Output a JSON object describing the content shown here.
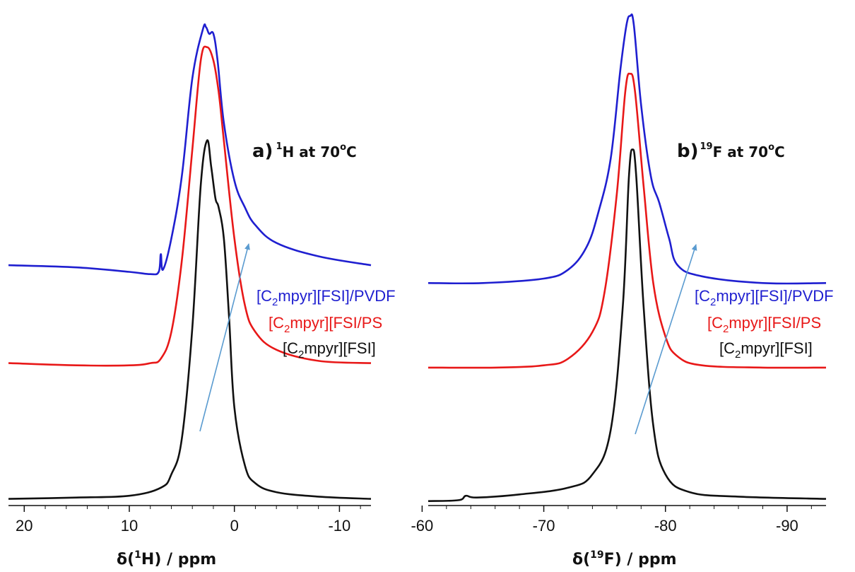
{
  "colors": {
    "blue": "#1f1fd0",
    "red": "#e81818",
    "black": "#111111",
    "arrow": "#5a9bd0"
  },
  "chart_data": [
    {
      "type": "line",
      "panel_label": "a)",
      "title_iso": "1",
      "title_nuc": "H",
      "title_rest": " at 70",
      "title_deg": "o",
      "title_unit": "C",
      "xlabel_pre": "δ(",
      "xlabel_iso": "1",
      "xlabel_nuc": "H",
      "xlabel_post": ") / ppm",
      "xlim": [
        21.5,
        -13
      ],
      "ylim": [
        0,
        1.12
      ],
      "x_ticks": [
        20,
        10,
        0,
        -10
      ],
      "tick_labels": [
        "20",
        "10",
        "0",
        "-10"
      ],
      "grid": false,
      "series": [
        {
          "name": "[C2mpyr][FSI]/PVDF",
          "color": "#1f1fd0",
          "x": [
            21.5,
            15,
            10,
            8,
            7.2,
            7.0,
            6.8,
            6,
            5,
            4,
            3,
            2.7,
            2.4,
            2,
            1.6,
            1,
            0,
            -1,
            -2,
            -4,
            -8,
            -13
          ],
          "y": [
            0.54,
            0.535,
            0.525,
            0.52,
            0.525,
            0.565,
            0.53,
            0.6,
            0.74,
            0.96,
            1.07,
            1.075,
            1.06,
            1.06,
            1.0,
            0.86,
            0.73,
            0.67,
            0.63,
            0.59,
            0.56,
            0.54
          ]
        },
        {
          "name": "[C2mpyr][FSI/PS",
          "color": "#e81818",
          "x": [
            21.5,
            15,
            10,
            8,
            7,
            6,
            5,
            4,
            3.2,
            2.6,
            2.0,
            1.5,
            1.0,
            0,
            -1,
            -2,
            -4,
            -8,
            -13
          ],
          "y": [
            0.32,
            0.315,
            0.315,
            0.32,
            0.33,
            0.39,
            0.55,
            0.8,
            1.0,
            1.03,
            1.0,
            0.93,
            0.82,
            0.6,
            0.45,
            0.39,
            0.35,
            0.325,
            0.32
          ]
        },
        {
          "name": "[C2mpyr][FSI]",
          "color": "#111111",
          "x": [
            21.5,
            15,
            10,
            7,
            6,
            5,
            4,
            3.2,
            2.6,
            2.2,
            1.8,
            1.5,
            1.0,
            0.5,
            0,
            -1,
            -2,
            -4,
            -8,
            -13
          ],
          "y": [
            0.015,
            0.018,
            0.022,
            0.04,
            0.07,
            0.15,
            0.4,
            0.72,
            0.82,
            0.76,
            0.69,
            0.67,
            0.6,
            0.42,
            0.22,
            0.09,
            0.05,
            0.03,
            0.02,
            0.015
          ]
        }
      ],
      "legend_labels": [
        {
          "pre": "[C",
          "sub": "2",
          "post": "mpyr][FSI]/PVDF",
          "color": "#1f1fd0"
        },
        {
          "pre": "[C",
          "sub": "2",
          "post": "mpyr][FSI/PS",
          "color": "#e81818"
        },
        {
          "pre": "[C",
          "sub": "2",
          "post": "mpyr][FSI]",
          "color": "#111111"
        }
      ]
    },
    {
      "type": "line",
      "panel_label": "b)",
      "title_iso": "19",
      "title_nuc": "F",
      "title_rest": " at 70",
      "title_deg": "o",
      "title_unit": "C",
      "xlabel_pre": "δ(",
      "xlabel_iso": "19",
      "xlabel_nuc": "F",
      "xlabel_post": ") / ppm",
      "xlim": [
        -60.5,
        -93.2
      ],
      "ylim": [
        0,
        1.12
      ],
      "x_ticks": [
        -60,
        -70,
        -80,
        -90
      ],
      "tick_labels": [
        "-60",
        "-70",
        "-80",
        "-90"
      ],
      "grid": false,
      "series": [
        {
          "name": "[C2mpyr][FSI]/PVDF",
          "color": "#1f1fd0",
          "x": [
            -60.5,
            -65,
            -70,
            -72,
            -73.5,
            -74.5,
            -75.5,
            -76.3,
            -76.8,
            -77.1,
            -77.4,
            -78,
            -78.8,
            -79.5,
            -80.3,
            -81,
            -83,
            -88,
            -93.2
          ],
          "y": [
            0.5,
            0.5,
            0.51,
            0.53,
            0.58,
            0.66,
            0.78,
            0.98,
            1.08,
            1.1,
            1.08,
            0.9,
            0.74,
            0.68,
            0.6,
            0.54,
            0.515,
            0.5,
            0.5
          ]
        },
        {
          "name": "[C2mpyr][FSI/PS",
          "color": "#e81818",
          "x": [
            -60.5,
            -66,
            -70,
            -72,
            -74,
            -75,
            -76,
            -76.7,
            -77.1,
            -77.5,
            -78.2,
            -79,
            -80,
            -81,
            -83,
            -88,
            -93.2
          ],
          "y": [
            0.31,
            0.31,
            0.315,
            0.33,
            0.39,
            0.48,
            0.7,
            0.93,
            0.97,
            0.93,
            0.72,
            0.5,
            0.38,
            0.335,
            0.315,
            0.31,
            0.31
          ]
        },
        {
          "name": "[C2mpyr][FSI]",
          "color": "#111111",
          "x": [
            -60.5,
            -63,
            -63.6,
            -64.5,
            -68,
            -72,
            -74,
            -75.5,
            -76.5,
            -77,
            -77.3,
            -77.6,
            -78.2,
            -79,
            -80,
            -82,
            -86,
            -93.2
          ],
          "y": [
            0.01,
            0.012,
            0.022,
            0.018,
            0.025,
            0.04,
            0.07,
            0.17,
            0.45,
            0.74,
            0.8,
            0.74,
            0.45,
            0.18,
            0.07,
            0.03,
            0.02,
            0.015
          ]
        }
      ],
      "legend_labels": [
        {
          "pre": "[C",
          "sub": "2",
          "post": "mpyr][FSI]/PVDF",
          "color": "#1f1fd0"
        },
        {
          "pre": "[C",
          "sub": "2",
          "post": "mpyr][FSI/PS",
          "color": "#e81818"
        },
        {
          "pre": "[C",
          "sub": "2",
          "post": "mpyr][FSI]",
          "color": "#111111"
        }
      ]
    }
  ]
}
